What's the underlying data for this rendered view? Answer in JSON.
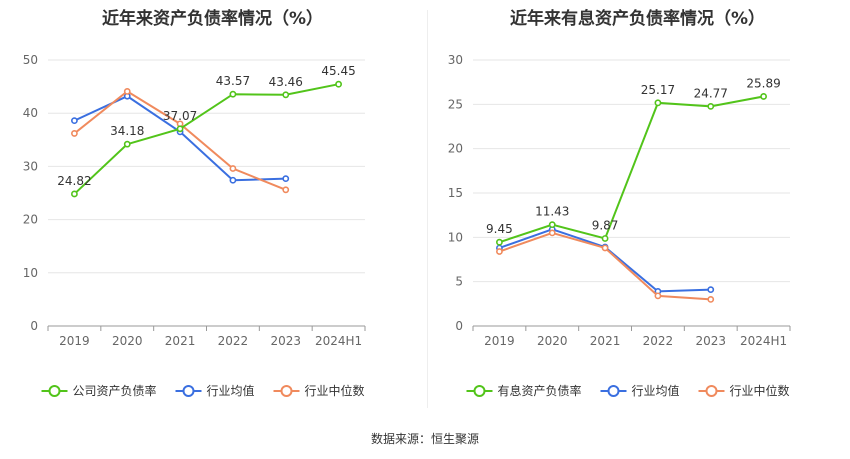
{
  "source": "数据来源：恒生聚源",
  "chart_data": [
    {
      "type": "line",
      "title": "近年来资产负债率情况（%）",
      "categories": [
        "2019",
        "2020",
        "2021",
        "2022",
        "2023",
        "2024H1"
      ],
      "ylim": [
        0,
        50
      ],
      "yticks": [
        0,
        10,
        20,
        30,
        40,
        50
      ],
      "grid": true,
      "legend_position": "bottom",
      "series": [
        {
          "name": "公司资产负债率",
          "color": "#52c41a",
          "values": [
            24.82,
            34.18,
            37.07,
            43.57,
            43.46,
            45.45
          ],
          "labels": true
        },
        {
          "name": "行业均值",
          "color": "#3a6fe0",
          "values": [
            38.6,
            43.2,
            36.5,
            27.4,
            27.7,
            null
          ],
          "labels": false
        },
        {
          "name": "行业中位数",
          "color": "#f08a5d",
          "values": [
            36.2,
            44.1,
            38.0,
            29.6,
            25.6,
            null
          ],
          "labels": false
        }
      ]
    },
    {
      "type": "line",
      "title": "近年来有息资产负债率情况（%）",
      "categories": [
        "2019",
        "2020",
        "2021",
        "2022",
        "2023",
        "2024H1"
      ],
      "ylim": [
        0,
        30
      ],
      "yticks": [
        0,
        5,
        10,
        15,
        20,
        25,
        30
      ],
      "grid": true,
      "legend_position": "bottom",
      "series": [
        {
          "name": "有息资产负债率",
          "color": "#52c41a",
          "values": [
            9.45,
            11.43,
            9.87,
            25.17,
            24.77,
            25.89
          ],
          "labels": true
        },
        {
          "name": "行业均值",
          "color": "#3a6fe0",
          "values": [
            8.8,
            10.9,
            8.9,
            3.9,
            4.1,
            null
          ],
          "labels": false
        },
        {
          "name": "行业中位数",
          "color": "#f08a5d",
          "values": [
            8.4,
            10.5,
            8.8,
            3.4,
            3.0,
            null
          ],
          "labels": false
        }
      ]
    }
  ]
}
